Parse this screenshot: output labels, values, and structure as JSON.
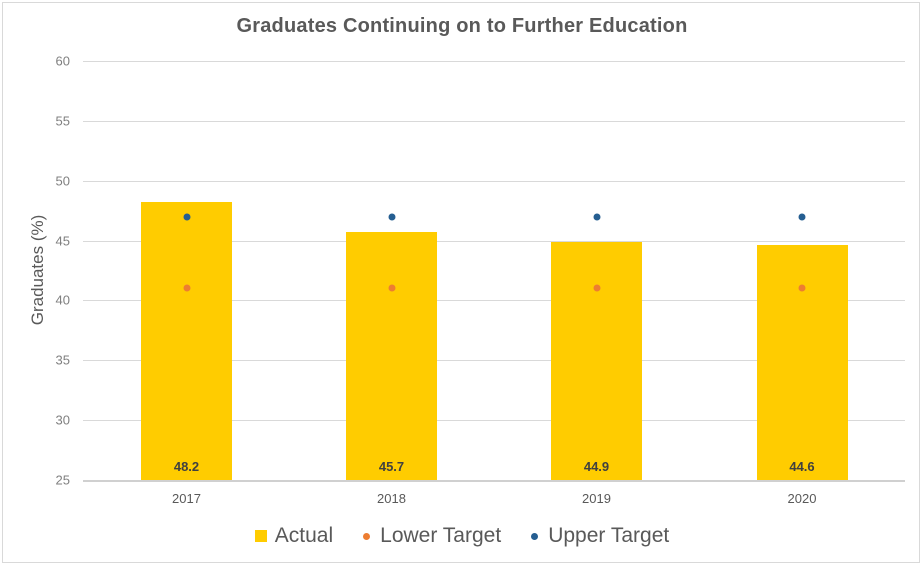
{
  "chart_data": {
    "type": "bar",
    "title": "Graduates Continuing on to Further Education",
    "xlabel": "",
    "ylabel": "Graduates (%)",
    "ylim": [
      25,
      60
    ],
    "yticks": [
      60,
      55,
      50,
      45,
      40,
      35,
      30,
      25
    ],
    "grid": true,
    "legend_position": "bottom",
    "categories": [
      "2017",
      "2018",
      "2019",
      "2020"
    ],
    "series": [
      {
        "name": "Actual",
        "type": "bar",
        "color": "#ffcc00",
        "values": [
          48.2,
          45.7,
          44.9,
          44.6
        ],
        "data_labels": [
          "48.2",
          "45.7",
          "44.9",
          "44.6"
        ]
      },
      {
        "name": "Lower Target",
        "type": "scatter",
        "color": "#ed7d31",
        "values": [
          41,
          41,
          41,
          41
        ]
      },
      {
        "name": "Upper Target",
        "type": "scatter",
        "color": "#255e91",
        "values": [
          47,
          47,
          47,
          47
        ]
      }
    ]
  },
  "legend": {
    "actual": "Actual",
    "lower": "Lower Target",
    "upper": "Upper Target"
  }
}
